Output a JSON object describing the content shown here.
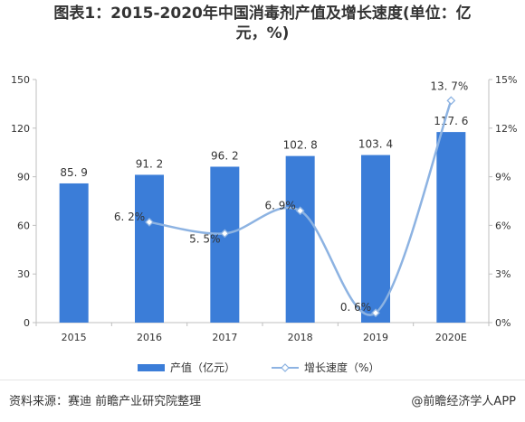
{
  "title_line1": "图表1：2015-2020年中国消毒剂产值及增长速度(单位：亿",
  "title_line2": "元，%)",
  "chart_data": {
    "type": "bar",
    "categories": [
      "2015",
      "2016",
      "2017",
      "2018",
      "2019",
      "2020E"
    ],
    "series": [
      {
        "name": "产值（亿元）",
        "type": "bar",
        "axis": "left",
        "values": [
          85.9,
          91.2,
          96.2,
          102.8,
          103.4,
          117.6
        ],
        "labels": [
          "85. 9",
          "91. 2",
          "96. 2",
          "102. 8",
          "103. 4",
          "117. 6"
        ],
        "color": "#3b7dd8"
      },
      {
        "name": "增长速度（%）",
        "type": "line",
        "axis": "right",
        "values": [
          null,
          6.2,
          5.5,
          6.9,
          0.6,
          13.7
        ],
        "labels": [
          "",
          "6. 2%",
          "5. 5%",
          "6. 9%",
          "0. 6%",
          "13. 7%"
        ],
        "color": "#8db3e2"
      }
    ],
    "left_axis": {
      "min": 0,
      "max": 150,
      "ticks": [
        "0",
        "30",
        "60",
        "90",
        "120",
        "150"
      ]
    },
    "right_axis": {
      "min": 0,
      "max": 15,
      "ticks": [
        "0%",
        "3%",
        "6%",
        "9%",
        "12%",
        "15%"
      ]
    },
    "legend_position": "bottom"
  },
  "legend": {
    "bar_label": "产值（亿元）",
    "line_label": "增长速度（%）"
  },
  "footer": {
    "source": "资料来源：赛迪 前瞻产业研究院整理",
    "brand": "@前瞻经济学人APP"
  }
}
